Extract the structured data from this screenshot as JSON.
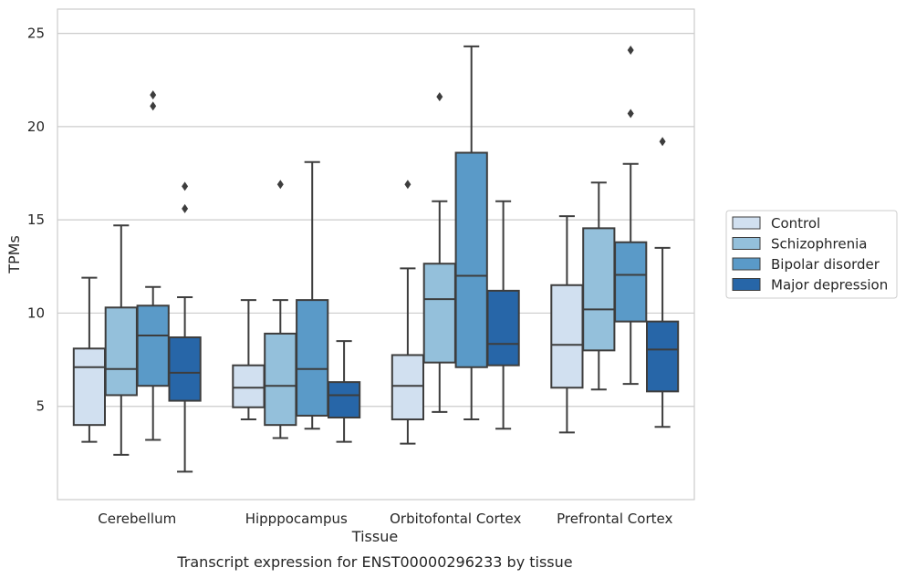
{
  "chart_data": {
    "type": "box",
    "title": "",
    "caption": "Transcript expression for ENST00000296233 by tissue",
    "xlabel": "Tissue",
    "ylabel": "TPMs",
    "ylim": [
      0,
      26.3
    ],
    "yticks": [
      5,
      10,
      15,
      20,
      25
    ],
    "grid": "horizontal",
    "legend_position": "right",
    "categories": [
      "Cerebellum",
      "Hipppocampus",
      "Orbitofontal Cortex",
      "Prefrontal Cortex"
    ],
    "colors": [
      "#d1e0f0",
      "#94c0db",
      "#5a9ac8",
      "#2766a8"
    ],
    "series": [
      {
        "name": "Control",
        "boxes": [
          {
            "whislo": 3.1,
            "q1": 4.0,
            "med": 7.1,
            "q3": 8.1,
            "whishi": 11.9,
            "fliers": []
          },
          {
            "whislo": 4.3,
            "q1": 4.95,
            "med": 6.0,
            "q3": 7.2,
            "whishi": 10.7,
            "fliers": []
          },
          {
            "whislo": 3.0,
            "q1": 4.3,
            "med": 6.1,
            "q3": 7.75,
            "whishi": 12.4,
            "fliers": [
              16.9
            ]
          },
          {
            "whislo": 3.6,
            "q1": 6.0,
            "med": 8.3,
            "q3": 11.5,
            "whishi": 15.2,
            "fliers": []
          }
        ]
      },
      {
        "name": "Schizophrenia",
        "boxes": [
          {
            "whislo": 2.4,
            "q1": 5.6,
            "med": 7.0,
            "q3": 10.3,
            "whishi": 14.7,
            "fliers": []
          },
          {
            "whislo": 3.3,
            "q1": 4.0,
            "med": 6.1,
            "q3": 8.9,
            "whishi": 10.7,
            "fliers": [
              16.9
            ]
          },
          {
            "whislo": 4.7,
            "q1": 7.35,
            "med": 10.75,
            "q3": 12.65,
            "whishi": 16.0,
            "fliers": [
              21.6
            ]
          },
          {
            "whislo": 5.9,
            "q1": 8.0,
            "med": 10.2,
            "q3": 14.55,
            "whishi": 17.0,
            "fliers": []
          }
        ]
      },
      {
        "name": "Bipolar disorder",
        "boxes": [
          {
            "whislo": 3.2,
            "q1": 6.1,
            "med": 8.8,
            "q3": 10.4,
            "whishi": 11.4,
            "fliers": [
              21.1,
              21.7
            ]
          },
          {
            "whislo": 3.8,
            "q1": 4.5,
            "med": 7.0,
            "q3": 10.7,
            "whishi": 18.1,
            "fliers": []
          },
          {
            "whislo": 4.3,
            "q1": 7.1,
            "med": 12.0,
            "q3": 18.6,
            "whishi": 24.3,
            "fliers": []
          },
          {
            "whislo": 6.2,
            "q1": 9.55,
            "med": 12.05,
            "q3": 13.8,
            "whishi": 18.0,
            "fliers": [
              20.7,
              24.1
            ]
          }
        ]
      },
      {
        "name": "Major depression",
        "boxes": [
          {
            "whislo": 1.5,
            "q1": 5.3,
            "med": 6.8,
            "q3": 8.7,
            "whishi": 10.85,
            "fliers": [
              15.6,
              16.8
            ]
          },
          {
            "whislo": 3.1,
            "q1": 4.4,
            "med": 5.6,
            "q3": 6.3,
            "whishi": 8.5,
            "fliers": []
          },
          {
            "whislo": 3.8,
            "q1": 7.2,
            "med": 8.35,
            "q3": 11.2,
            "whishi": 16.0,
            "fliers": []
          },
          {
            "whislo": 3.9,
            "q1": 5.8,
            "med": 8.05,
            "q3": 9.55,
            "whishi": 13.5,
            "fliers": [
              19.2
            ]
          }
        ]
      }
    ]
  }
}
